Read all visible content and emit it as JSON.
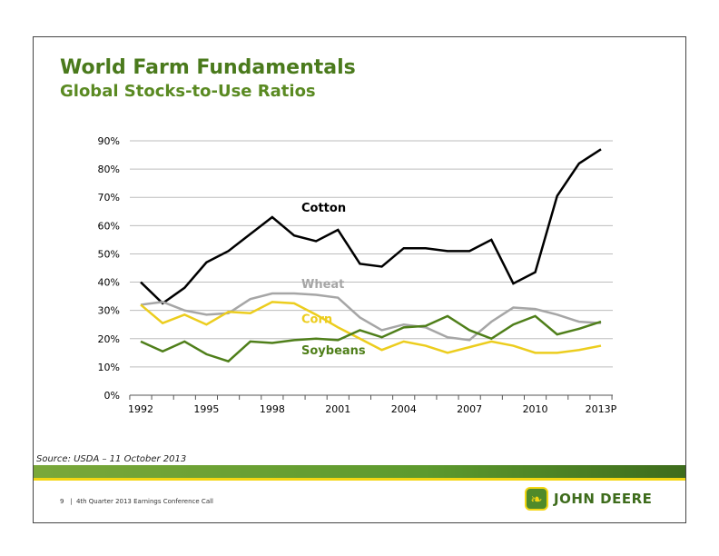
{
  "title": "World Farm Fundamentals",
  "subtitle": "Global Stocks-to-Use Ratios",
  "source": "Source: USDA – 11 October 2013",
  "footer": "9   |  4th Quarter 2013 Earnings Conference Call",
  "logo_text": "JOHN DEERE",
  "chart_data": {
    "type": "line",
    "title": "Global Stocks-to-Use Ratios",
    "ylim": [
      0,
      90
    ],
    "yticks": [
      "0%",
      "10%",
      "20%",
      "30%",
      "40%",
      "50%",
      "60%",
      "70%",
      "80%",
      "90%"
    ],
    "x": [
      1992,
      1993,
      1994,
      1995,
      1996,
      1997,
      1998,
      1999,
      2000,
      2001,
      2002,
      2003,
      2004,
      2005,
      2006,
      2007,
      2008,
      2009,
      2010,
      2011,
      2012,
      2013
    ],
    "xtick_labels": [
      {
        "year": 1992,
        "label": "1992"
      },
      {
        "year": 1995,
        "label": "1995"
      },
      {
        "year": 1998,
        "label": "1998"
      },
      {
        "year": 2001,
        "label": "2001"
      },
      {
        "year": 2004,
        "label": "2004"
      },
      {
        "year": 2007,
        "label": "2007"
      },
      {
        "year": 2010,
        "label": "2010"
      },
      {
        "year": 2013,
        "label": "2013P"
      }
    ],
    "grid": true,
    "series": [
      {
        "name": "Cotton",
        "color": "#000000",
        "label_year": 1999,
        "label_value": 65,
        "values": [
          40,
          32.5,
          38,
          47,
          51,
          57,
          63,
          56.5,
          54.5,
          58.5,
          46.5,
          45.5,
          52,
          52,
          51,
          51,
          55,
          39.5,
          43.5,
          70.5,
          82,
          87
        ]
      },
      {
        "name": "Wheat",
        "color": "#a6a6a6",
        "label_year": 1999,
        "label_value": 38,
        "values": [
          32,
          33,
          30,
          28.5,
          29,
          34,
          36,
          36,
          35.5,
          34.5,
          27.5,
          23,
          25,
          24,
          20.5,
          19.5,
          26,
          31,
          30.5,
          28.5,
          26,
          25.5
        ]
      },
      {
        "name": "Corn",
        "color": "#eccd1e",
        "label_year": 1999,
        "label_value": 25.5,
        "values": [
          32,
          25.5,
          28.5,
          25,
          29.5,
          29,
          33,
          32.5,
          28.5,
          24,
          20,
          16,
          19,
          17.5,
          15,
          17,
          19,
          17.5,
          15,
          15,
          16,
          17.5
        ]
      },
      {
        "name": "Soybeans",
        "color": "#4f7f1a",
        "label_year": 1999,
        "label_value": 14.5,
        "values": [
          19,
          15.5,
          19,
          14.5,
          12,
          19,
          18.5,
          19.5,
          20,
          19.5,
          23,
          20.5,
          24,
          24.5,
          28,
          23,
          20,
          25,
          28,
          21.5,
          23.5,
          26
        ]
      }
    ]
  }
}
